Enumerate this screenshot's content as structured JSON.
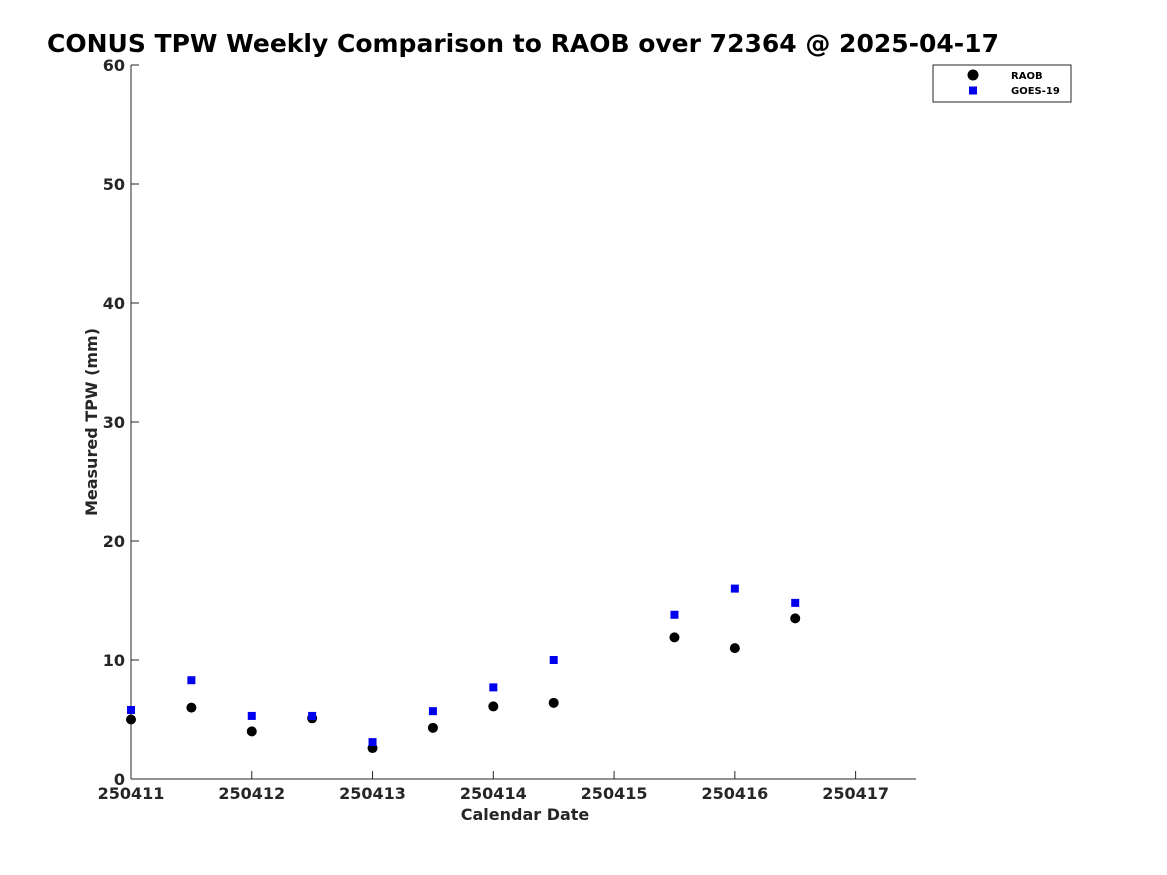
{
  "chart_data": {
    "type": "scatter",
    "title": "CONUS TPW Weekly Comparison to RAOB over 72364 @ 2025-04-17",
    "xlabel": "Calendar Date",
    "ylabel": "Measured TPW (mm)",
    "xlim": [
      0,
      6.5
    ],
    "ylim": [
      0,
      60
    ],
    "x_ticks": [
      {
        "value": 0,
        "label": "250411"
      },
      {
        "value": 1,
        "label": "250412"
      },
      {
        "value": 2,
        "label": "250413"
      },
      {
        "value": 3,
        "label": "250414"
      },
      {
        "value": 4,
        "label": "250415"
      },
      {
        "value": 5,
        "label": "250416"
      },
      {
        "value": 6,
        "label": "250417"
      }
    ],
    "y_ticks": [
      {
        "value": 0,
        "label": "0"
      },
      {
        "value": 10,
        "label": "10"
      },
      {
        "value": 20,
        "label": "20"
      },
      {
        "value": 30,
        "label": "30"
      },
      {
        "value": 40,
        "label": "40"
      },
      {
        "value": 50,
        "label": "50"
      },
      {
        "value": 60,
        "label": "60"
      }
    ],
    "grid": false,
    "legend_position": "top-right",
    "series": [
      {
        "name": "RAOB",
        "marker": "circle",
        "color": "#000000",
        "x": [
          0,
          0.5,
          1,
          1.5,
          2,
          2.5,
          3,
          3.5,
          4.5,
          5,
          5.5
        ],
        "y": [
          5.0,
          6.0,
          4.0,
          5.1,
          2.6,
          4.3,
          6.1,
          6.4,
          11.9,
          11.0,
          13.5
        ]
      },
      {
        "name": "GOES-19",
        "marker": "square",
        "color": "#0000ee",
        "x": [
          0,
          0.5,
          1,
          1.5,
          2,
          2.5,
          3,
          3.5,
          4.5,
          5,
          5.5
        ],
        "y": [
          5.8,
          8.3,
          5.3,
          5.3,
          3.1,
          5.7,
          7.7,
          10.0,
          13.8,
          16.0,
          14.8
        ]
      }
    ]
  }
}
